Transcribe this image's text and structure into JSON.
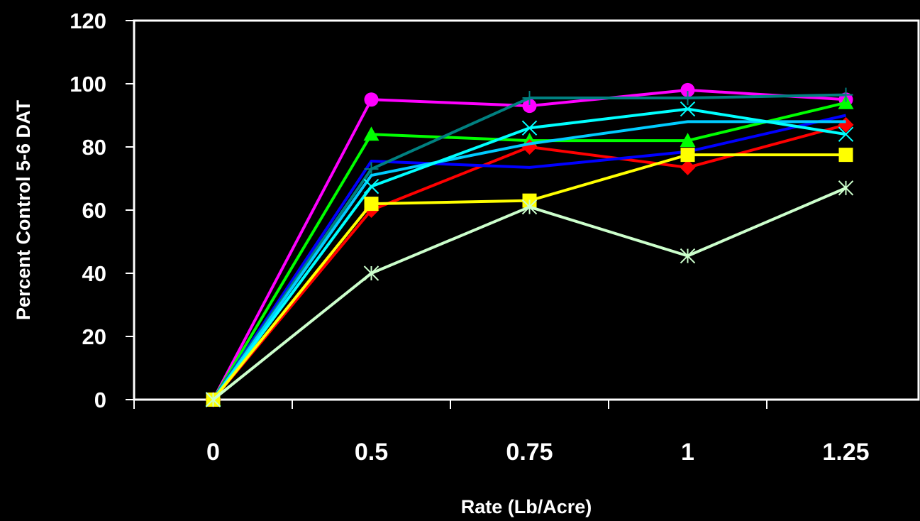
{
  "chart_data": {
    "type": "line",
    "title": "",
    "xlabel": "Rate (Lb/Acre)",
    "ylabel": "Percent Control 5-6 DAT",
    "categories": [
      "0",
      "0.5",
      "0.75",
      "1",
      "1.25"
    ],
    "ylim": [
      0,
      120
    ],
    "yticks": [
      0,
      20,
      40,
      60,
      80,
      100,
      120
    ],
    "grid": false,
    "legend": "none",
    "background": "#000000",
    "axis_color": "#ffffff",
    "series": [
      {
        "color": "#ff00ff",
        "marker": "circle",
        "values": [
          0,
          95,
          93,
          98,
          95
        ]
      },
      {
        "color": "#00ff00",
        "marker": "triangle",
        "values": [
          0,
          84,
          82,
          82,
          94
        ]
      },
      {
        "color": "#ff0000",
        "marker": "diamond",
        "values": [
          0,
          60,
          80,
          73.5,
          87
        ]
      },
      {
        "color": "#0000ff",
        "marker": "none",
        "values": [
          0,
          75.5,
          73.5,
          78.5,
          90
        ]
      },
      {
        "color": "#008080",
        "marker": "plus",
        "values": [
          0,
          73,
          95.5,
          95.5,
          96.5
        ]
      },
      {
        "color": "#00ccff",
        "marker": "none",
        "values": [
          0,
          71,
          81,
          88,
          88
        ]
      },
      {
        "color": "#00ffff",
        "marker": "x",
        "values": [
          0,
          67.5,
          86,
          92,
          84
        ]
      },
      {
        "color": "#ffff00",
        "marker": "square",
        "values": [
          0,
          62,
          63,
          77.5,
          77.5
        ]
      },
      {
        "color": "#ccffcc",
        "marker": "asterisk",
        "values": [
          0,
          40,
          61,
          45.5,
          67
        ]
      }
    ]
  }
}
